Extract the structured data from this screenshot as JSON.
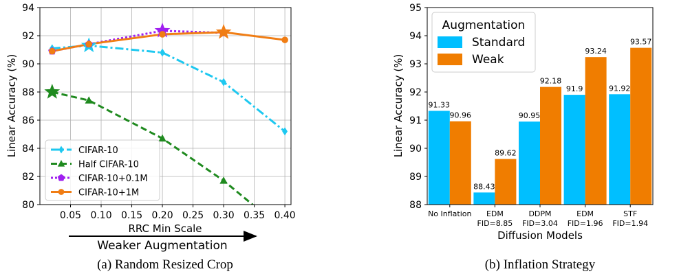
{
  "chart_data": [
    {
      "type": "line",
      "caption": "(a) Random Resized Crop",
      "xlabel": "RRC Min Scale",
      "ylabel": "Linear Accuracy (%)",
      "annotation": "Weaker Augmentation",
      "xlim": [
        0.0,
        0.41
      ],
      "ylim": [
        80,
        94
      ],
      "xticks": [
        0.05,
        0.1,
        0.15,
        0.2,
        0.25,
        0.3,
        0.35,
        0.4
      ],
      "xtick_labels": [
        "0.05",
        "0.10",
        "0.15",
        "0.20",
        "0.25",
        "0.30",
        "0.35",
        "0.40"
      ],
      "yticks": [
        80,
        82,
        84,
        86,
        88,
        90,
        92,
        94
      ],
      "ytick_labels": [
        "80",
        "82",
        "84",
        "86",
        "88",
        "90",
        "92",
        "94"
      ],
      "grid": true,
      "legend_position": "lower-left",
      "series": [
        {
          "name": "CIFAR-10",
          "color": "#1ec8f0",
          "linestyle": "dashdot",
          "marker": "diamond",
          "x": [
            0.02,
            0.08,
            0.2,
            0.3,
            0.4
          ],
          "y": [
            91.1,
            91.3,
            90.8,
            88.7,
            85.2
          ],
          "highlight_index": 1
        },
        {
          "name": "Half CIFAR-10",
          "color": "#1f8a1f",
          "linestyle": "dashed",
          "marker": "triangle",
          "x": [
            0.02,
            0.08,
            0.2,
            0.3,
            0.35
          ],
          "y": [
            88.0,
            87.4,
            84.7,
            81.7,
            79.9
          ],
          "highlight_index": 0
        },
        {
          "name": "CIFAR-10+0.1M",
          "color": "#a020f0",
          "linestyle": "dotted",
          "marker": "pentagon",
          "x": [
            0.02,
            0.08,
            0.2,
            0.3
          ],
          "y": [
            90.9,
            91.4,
            92.35,
            92.2
          ],
          "highlight_index": 2
        },
        {
          "name": "CIFAR-10+1M",
          "color": "#f07d14",
          "linestyle": "solid",
          "marker": "circle",
          "x": [
            0.02,
            0.08,
            0.2,
            0.3,
            0.4
          ],
          "y": [
            90.9,
            91.4,
            92.1,
            92.25,
            91.7
          ],
          "highlight_index": 3
        }
      ]
    },
    {
      "type": "bar",
      "caption": "(b) Inflation Strategy",
      "xlabel": "Diffusion Models",
      "ylabel": "Linear Accuracy (%)",
      "ylim": [
        88,
        95
      ],
      "yticks": [
        88,
        89,
        90,
        91,
        92,
        93,
        94,
        95
      ],
      "ytick_labels": [
        "88",
        "89",
        "90",
        "91",
        "92",
        "93",
        "94",
        "95"
      ],
      "grid": false,
      "legend_title": "Augmentation",
      "legend_position": "top-left",
      "categories": [
        [
          "No Inflation"
        ],
        [
          "EDM",
          "FID=8.85"
        ],
        [
          "DDPM",
          "FID=3.04"
        ],
        [
          "EDM",
          "FID=1.96"
        ],
        [
          "STF",
          "FID=1.94"
        ]
      ],
      "series": [
        {
          "name": "Standard",
          "color": "#00bfff",
          "values": [
            91.33,
            88.43,
            90.95,
            91.9,
            91.92
          ],
          "value_labels": [
            "91.33",
            "88.43",
            "90.95",
            "91.9",
            "91.92"
          ]
        },
        {
          "name": "Weak",
          "color": "#f07d00",
          "values": [
            90.96,
            89.62,
            92.18,
            93.24,
            93.57
          ],
          "value_labels": [
            "90.96",
            "89.62",
            "92.18",
            "93.24",
            "93.57"
          ]
        }
      ]
    }
  ]
}
